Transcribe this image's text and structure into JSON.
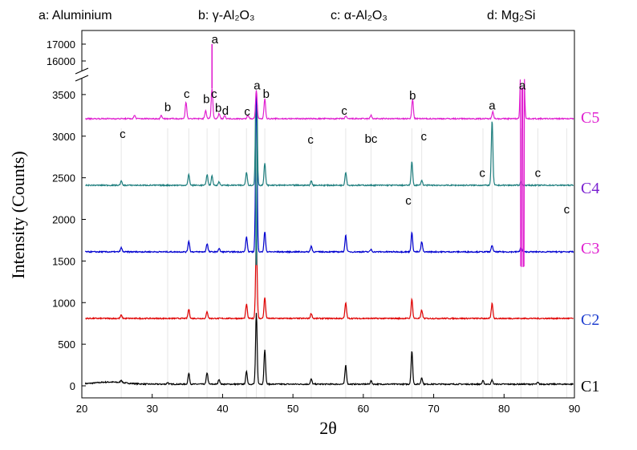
{
  "chart_data": {
    "type": "line",
    "title": "",
    "xlabel": "2θ",
    "ylabel": "Intensity (Counts)",
    "xlim": [
      20,
      90
    ],
    "ylim": [
      -100,
      3700
    ],
    "ylim_break": [
      16000,
      17000
    ],
    "x_ticks": [
      "20",
      "30",
      "40",
      "50",
      "60",
      "70",
      "80",
      "90"
    ],
    "y_ticks": [
      "0",
      "500",
      "1000",
      "1500",
      "2000",
      "2500",
      "3000",
      "3500"
    ],
    "y_ticks_upper": [
      "16000",
      "17000"
    ],
    "legend": [
      {
        "text": "a: Aluminium"
      },
      {
        "text": "b: γ-Al₂O₃"
      },
      {
        "text": "c: α-Al₂O₃"
      },
      {
        "text": "d: Mg₂Si"
      }
    ],
    "series": [
      {
        "name": "C1",
        "color": "#000000",
        "baseline": 20,
        "label_y": 0,
        "peaks": [
          [
            25.6,
            30
          ],
          [
            32.2,
            20
          ],
          [
            35.2,
            130
          ],
          [
            37.8,
            140
          ],
          [
            39.5,
            60
          ],
          [
            43.4,
            150
          ],
          [
            44.8,
            850
          ],
          [
            46.0,
            420
          ],
          [
            52.6,
            60
          ],
          [
            57.5,
            230
          ],
          [
            61.1,
            40
          ],
          [
            66.9,
            400
          ],
          [
            68.3,
            80
          ],
          [
            77.0,
            40
          ],
          [
            78.3,
            50
          ],
          [
            84.8,
            20
          ]
        ]
      },
      {
        "name": "C2",
        "color": "#e00000",
        "baseline": 810,
        "label_y": 800,
        "peaks": [
          [
            25.6,
            40
          ],
          [
            35.2,
            110
          ],
          [
            37.8,
            80
          ],
          [
            43.4,
            170
          ],
          [
            44.8,
            950
          ],
          [
            46.0,
            250
          ],
          [
            52.6,
            60
          ],
          [
            57.5,
            190
          ],
          [
            66.9,
            230
          ],
          [
            68.3,
            100
          ],
          [
            78.3,
            180
          ]
        ]
      },
      {
        "name": "C3",
        "color": "#0000d0",
        "baseline": 1610,
        "label_y": 1660,
        "peaks": [
          [
            25.6,
            50
          ],
          [
            35.2,
            130
          ],
          [
            37.8,
            100
          ],
          [
            39.5,
            40
          ],
          [
            43.4,
            180
          ],
          [
            44.8,
            1900
          ],
          [
            46.0,
            240
          ],
          [
            52.6,
            70
          ],
          [
            57.5,
            200
          ],
          [
            61.1,
            30
          ],
          [
            66.9,
            230
          ],
          [
            68.3,
            120
          ],
          [
            78.3,
            80
          ],
          [
            82.4,
            60
          ]
        ]
      },
      {
        "name": "C4",
        "color": "#1f7f7f",
        "baseline": 2410,
        "label_y": 2380,
        "peaks": [
          [
            25.6,
            50
          ],
          [
            35.2,
            130
          ],
          [
            37.8,
            130
          ],
          [
            38.5,
            110
          ],
          [
            39.5,
            40
          ],
          [
            43.4,
            160
          ],
          [
            44.8,
            1700
          ],
          [
            46.0,
            260
          ],
          [
            52.6,
            50
          ],
          [
            57.5,
            160
          ],
          [
            66.9,
            280
          ],
          [
            68.3,
            60
          ],
          [
            78.3,
            780
          ],
          [
            82.4,
            40
          ]
        ]
      },
      {
        "name": "C5",
        "color": "#e020d0",
        "baseline": 3210,
        "label_y": 3230,
        "peaks": [
          [
            27.5,
            40
          ],
          [
            31.3,
            40
          ],
          [
            34.8,
            200
          ],
          [
            37.6,
            100
          ],
          [
            38.5,
            360
          ],
          [
            39.5,
            60
          ],
          [
            40.3,
            40
          ],
          [
            43.6,
            40
          ],
          [
            44.8,
            340
          ],
          [
            46.0,
            240
          ],
          [
            57.5,
            30
          ],
          [
            61.1,
            40
          ],
          [
            67.0,
            230
          ],
          [
            78.4,
            90
          ],
          [
            82.4,
            700
          ],
          [
            82.8,
            700
          ]
        ],
        "break_peak": [
          38.5,
          17000
        ]
      }
    ],
    "annotations": [
      {
        "text": "a",
        "x": 38.9,
        "y": 17050
      },
      {
        "text": "a",
        "x": 44.9,
        "y": 3560
      },
      {
        "text": "b",
        "x": 46.2,
        "y": 3460
      },
      {
        "text": "b",
        "x": 32.2,
        "y": 3300
      },
      {
        "text": "c",
        "x": 34.9,
        "y": 3460
      },
      {
        "text": "b",
        "x": 37.7,
        "y": 3400
      },
      {
        "text": "c",
        "x": 38.8,
        "y": 3460
      },
      {
        "text": "b",
        "x": 39.4,
        "y": 3290
      },
      {
        "text": "d",
        "x": 40.4,
        "y": 3260
      },
      {
        "text": "c",
        "x": 43.5,
        "y": 3250
      },
      {
        "text": "c",
        "x": 57.3,
        "y": 3260
      },
      {
        "text": "b",
        "x": 67.0,
        "y": 3440
      },
      {
        "text": "a",
        "x": 78.3,
        "y": 3320
      },
      {
        "text": "a",
        "x": 82.6,
        "y": 3560
      },
      {
        "text": "c",
        "x": 25.8,
        "y": 2980
      },
      {
        "text": "c",
        "x": 52.5,
        "y": 2910
      },
      {
        "text": "bc",
        "x": 61.1,
        "y": 2920
      },
      {
        "text": "c",
        "x": 68.6,
        "y": 2950
      },
      {
        "text": "c",
        "x": 76.9,
        "y": 2510
      },
      {
        "text": "c",
        "x": 84.8,
        "y": 2510
      },
      {
        "text": "c",
        "x": 66.4,
        "y": 2180
      },
      {
        "text": "c",
        "x": 88.9,
        "y": 2070
      }
    ],
    "guide_lines_x": [
      25.6,
      32.2,
      35.2,
      37.8,
      39.5,
      43.4,
      44.8,
      46.0,
      52.6,
      57.5,
      61.1,
      66.9,
      68.3,
      77.0,
      78.3,
      82.4,
      84.8,
      88.9
    ]
  }
}
